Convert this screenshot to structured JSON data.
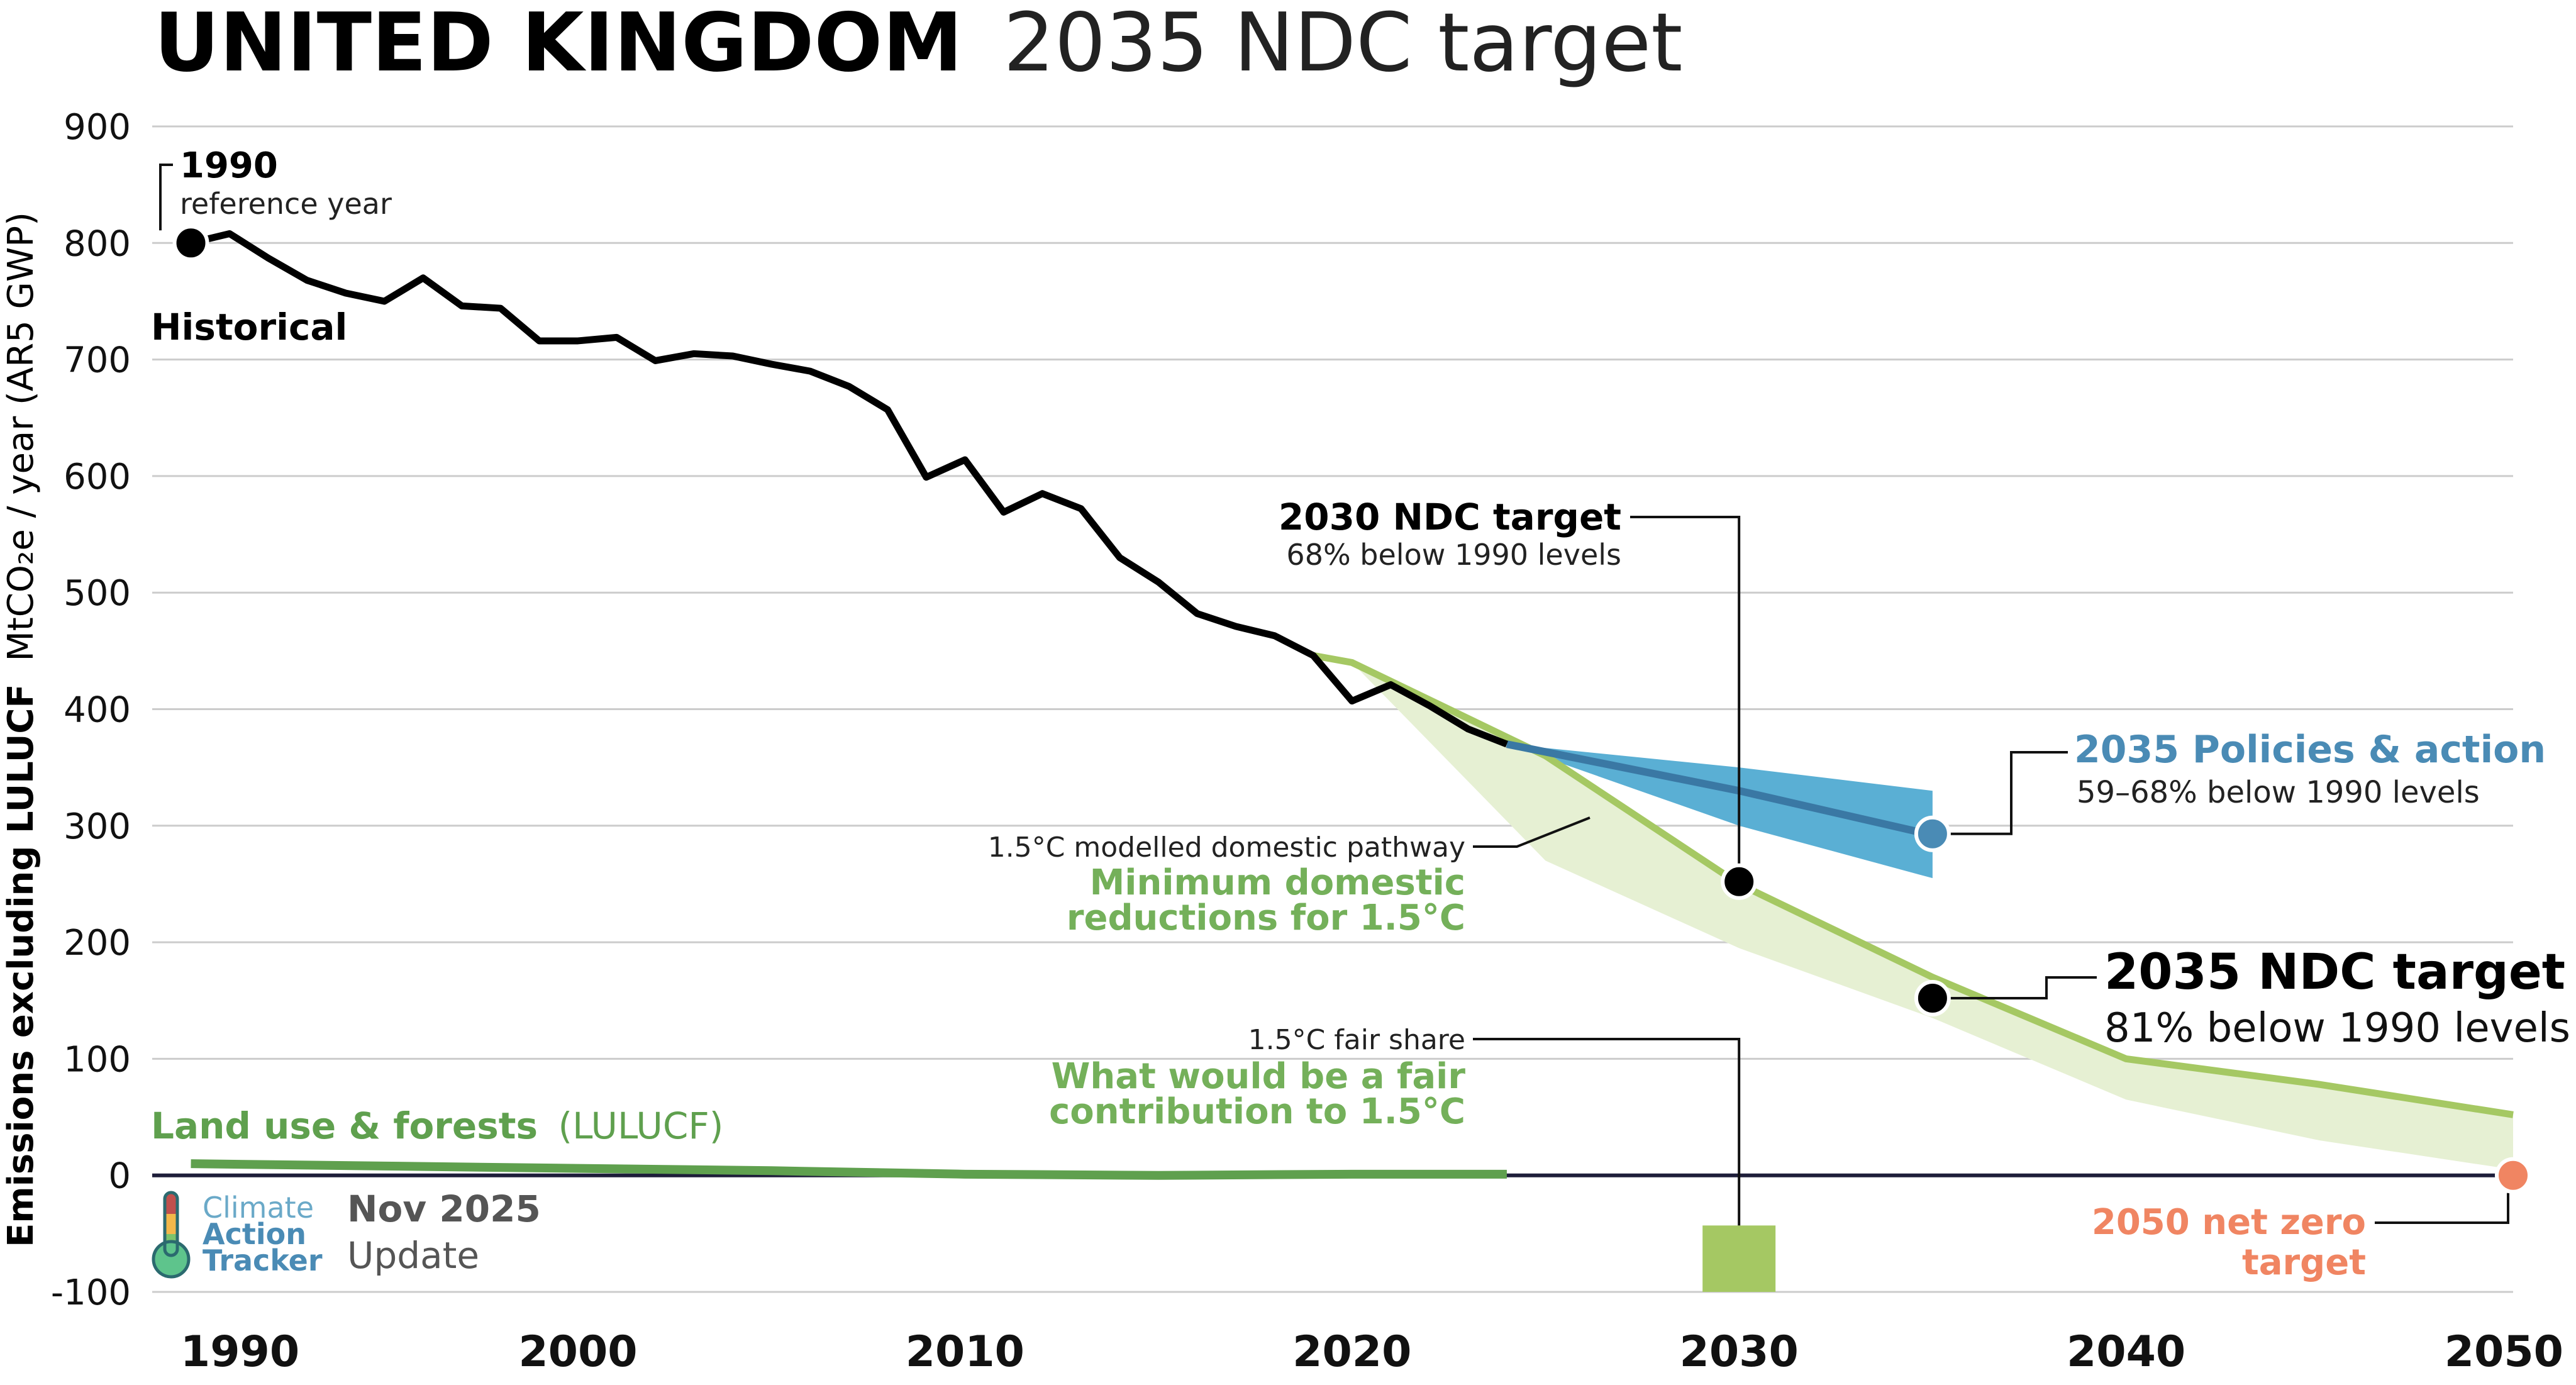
{
  "title": {
    "bold": "UNITED KINGDOM",
    "rest": "2035 NDC target"
  },
  "chart_data": {
    "type": "line",
    "ylabel_bold": "Emissions excluding LULUCF",
    "ylabel_unit": "MtCO₂e / year (AR5 GWP)",
    "xlim": [
      1989,
      2050
    ],
    "ylim": [
      -100,
      900
    ],
    "y_ticks": [
      -100,
      0,
      100,
      200,
      300,
      400,
      500,
      600,
      700,
      800,
      900
    ],
    "x_ticks": [
      1990,
      2000,
      2010,
      2020,
      2030,
      2040,
      2050
    ],
    "grid": "horizontal",
    "series": [
      {
        "name": "Historical",
        "color": "#000000",
        "x": [
          1990,
          1991,
          1992,
          1993,
          1994,
          1995,
          1996,
          1997,
          1998,
          1999,
          2000,
          2001,
          2002,
          2003,
          2004,
          2005,
          2006,
          2007,
          2008,
          2009,
          2010,
          2011,
          2012,
          2013,
          2014,
          2015,
          2016,
          2017,
          2018,
          2019,
          2020,
          2021,
          2022,
          2023,
          2024
        ],
        "y": [
          800,
          808,
          787,
          768,
          757,
          750,
          770,
          746,
          744,
          716,
          716,
          719,
          699,
          705,
          703,
          696,
          690,
          677,
          657,
          599,
          614,
          569,
          585,
          572,
          530,
          509,
          482,
          471,
          463,
          446,
          407,
          421,
          403,
          383,
          370
        ]
      },
      {
        "name": "1.5°C modelled domestic pathway",
        "color": "#a5c863",
        "x": [
          2019,
          2020,
          2025,
          2030,
          2035,
          2040,
          2045,
          2050
        ],
        "y": [
          446,
          440,
          360,
          250,
          170,
          100,
          78,
          52
        ],
        "band_low": [
          446,
          440,
          270,
          195,
          135,
          65,
          30,
          5
        ]
      },
      {
        "name": "2035 Policies & action",
        "color": "#4a8bb5",
        "x": [
          2024,
          2030,
          2035
        ],
        "y": [
          370,
          330,
          292
        ],
        "band_low": [
          370,
          300,
          255
        ],
        "band_high": [
          370,
          350,
          330
        ]
      },
      {
        "name": "Land use & forests (LULUCF)",
        "color": "#5fa04e",
        "x": [
          1990,
          1995,
          2000,
          2005,
          2010,
          2015,
          2020,
          2024
        ],
        "y": [
          10,
          8,
          6,
          4,
          1,
          0,
          1,
          1
        ]
      }
    ],
    "markers": [
      {
        "x": 1990,
        "y": 800,
        "color": "#000000"
      },
      {
        "x": 2030,
        "y": 252,
        "color": "#000000"
      },
      {
        "x": 2035,
        "y": 152,
        "color": "#000000"
      },
      {
        "x": 2035,
        "y": 293,
        "color": "#4a8bb5"
      },
      {
        "x": 2050,
        "y": 0,
        "color": "#f08562"
      }
    ],
    "fair_share_bar": {
      "x": 2030,
      "y_top": -43,
      "y_bottom": -100,
      "color": "#a5c863"
    },
    "annotations": {
      "ref_year": "1990",
      "ref_sub": "reference year",
      "historical": "Historical",
      "ndc2030": "2030 NDC target",
      "ndc2030_sub": "68% below 1990 levels",
      "policies": "2035 Policies & action",
      "policies_sub": "59–68% below 1990 levels",
      "ndc2035": "2035 NDC target",
      "ndc2035_sub": "81% below 1990 levels",
      "modelled": "1.5°C modelled domestic pathway",
      "min_dom_1": "Minimum domestic",
      "min_dom_2": "reductions for 1.5°C",
      "fair": "1.5°C fair share",
      "fair_1": "What would be a fair",
      "fair_2": "contribution to 1.5°C",
      "lulucf_bold": "Land use & forests",
      "lulucf_paren": "(LULUCF)",
      "netzero_1": "2050 net zero",
      "netzero_2": "target"
    }
  },
  "logo": {
    "word1": "Climate",
    "word2": "Action",
    "word3": "Tracker",
    "date": "Nov 2025",
    "update": "Update"
  },
  "colors": {
    "green": "#a5c863",
    "green_text": "#74b05a",
    "blue": "#4a8bb5",
    "blue_band": "#5aafd4",
    "orange": "#f08562",
    "grid": "#cccccc"
  }
}
